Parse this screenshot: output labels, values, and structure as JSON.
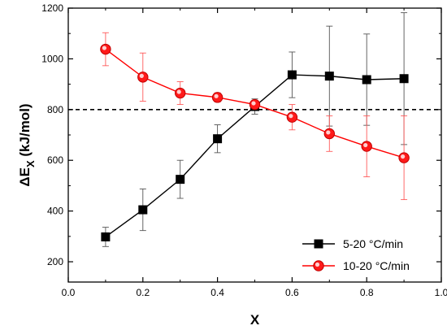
{
  "chart_data": {
    "type": "line",
    "xlabel": "X",
    "ylabel_main": "ΔE",
    "ylabel_sub": "X",
    "ylabel_unit": " (kJ/mol)",
    "xlim": [
      0.0,
      1.0
    ],
    "ylim": [
      120,
      1200
    ],
    "x_ticks": [
      "0.0",
      "0.2",
      "0.4",
      "0.6",
      "0.8",
      "1.0"
    ],
    "y_ticks": [
      "200",
      "400",
      "600",
      "800",
      "1000",
      "1200"
    ],
    "reference_line": {
      "y": 800,
      "style": "dashed"
    },
    "legend_position": "bottom-right",
    "series": [
      {
        "name": "5-20 °C/min",
        "marker": "square",
        "color": "#000000",
        "x": [
          0.1,
          0.2,
          0.3,
          0.4,
          0.5,
          0.6,
          0.7,
          0.8,
          0.9
        ],
        "y": [
          298,
          405,
          525,
          685,
          812,
          937,
          932,
          918,
          922
        ],
        "error": [
          38,
          82,
          75,
          55,
          30,
          90,
          197,
          180,
          260
        ]
      },
      {
        "name": "10-20 °C/min",
        "marker": "circle",
        "color": "#ff0000",
        "x": [
          0.1,
          0.2,
          0.3,
          0.4,
          0.5,
          0.6,
          0.7,
          0.8,
          0.9
        ],
        "y": [
          1038,
          928,
          865,
          848,
          820,
          770,
          705,
          655,
          610
        ],
        "error": [
          65,
          95,
          45,
          18,
          15,
          50,
          70,
          120,
          165
        ]
      }
    ]
  }
}
